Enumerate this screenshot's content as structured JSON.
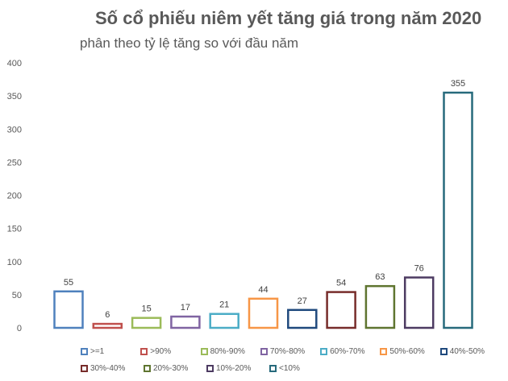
{
  "chart_data": {
    "type": "bar",
    "title": "Số cổ phiếu niêm yết tăng giá trong năm 2020",
    "subtitle": "phân theo tỷ lệ tăng so với đầu năm",
    "categories": [
      ">=1",
      ">90%",
      "80%-90%",
      "70%-80%",
      "60%-70%",
      "50%-60%",
      "40%-50%",
      "30%-40%",
      "20%-30%",
      "10%-20%",
      "<10%"
    ],
    "values": [
      55,
      6,
      15,
      17,
      21,
      44,
      27,
      54,
      63,
      76,
      355
    ],
    "value_labels": [
      "55",
      "6",
      "15",
      "17",
      "21",
      "44",
      "27",
      "54",
      "63",
      "76",
      "355"
    ],
    "colors": [
      "#4F81BD",
      "#C0504D",
      "#9BBB59",
      "#8064A2",
      "#4BACC6",
      "#F79646",
      "#1F497D",
      "#772C2A",
      "#5F7530",
      "#4D3B62",
      "#276A7C"
    ],
    "y_ticks": [
      "0",
      "50",
      "100",
      "150",
      "200",
      "250",
      "300",
      "350",
      "400"
    ],
    "ylim": [
      0,
      400
    ],
    "grid": false,
    "legend_position": "bottom"
  }
}
